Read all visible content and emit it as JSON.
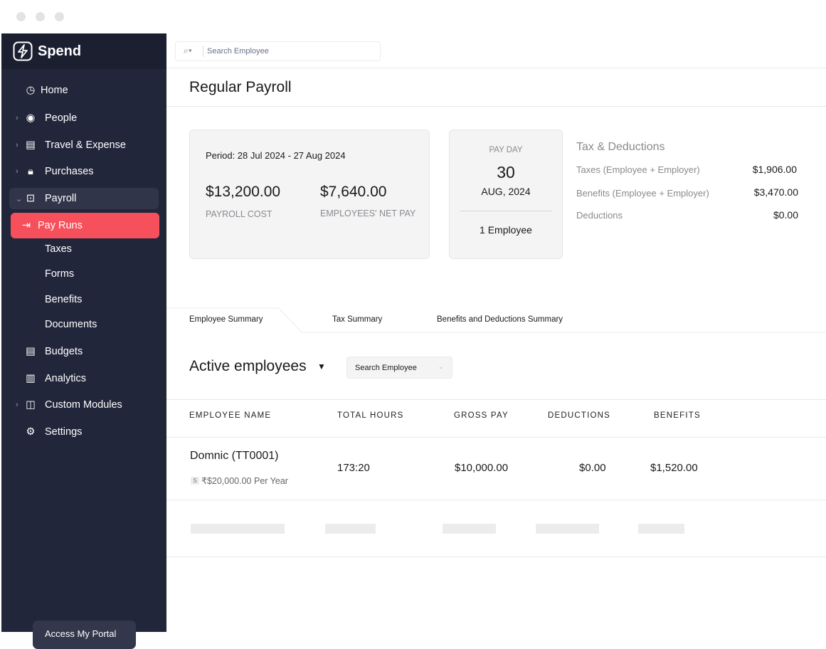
{
  "app": {
    "name": "Spend"
  },
  "sidebar": {
    "items": [
      {
        "label": "Home",
        "icon": "clock-icon"
      },
      {
        "label": "People",
        "icon": "user-circle-icon"
      },
      {
        "label": "Travel & Expense",
        "icon": "receipt-icon"
      },
      {
        "label": "Purchases",
        "icon": "bag-icon"
      },
      {
        "label": "Payroll",
        "icon": "payroll-icon"
      },
      {
        "label": "Pay Runs",
        "icon": "pay-runs-icon"
      },
      {
        "label": "Taxes"
      },
      {
        "label": "Forms"
      },
      {
        "label": "Benefits"
      },
      {
        "label": "Documents"
      },
      {
        "label": "Budgets",
        "icon": "budget-icon"
      },
      {
        "label": "Analytics",
        "icon": "chart-icon"
      },
      {
        "label": "Custom Modules",
        "icon": "layout-icon"
      },
      {
        "label": "Settings",
        "icon": "gear-icon"
      }
    ],
    "portal_button": "Access My Portal",
    "accent": "#f6505c"
  },
  "header": {
    "search_placeholder": "Search Employee",
    "title": "Regular Payroll"
  },
  "summary": {
    "period": "Period: 28 Jul 2024 - 27 Aug 2024",
    "payroll_cost": "$13,200.00",
    "payroll_cost_label": "PAYROLL COST",
    "net_pay": "$7,640.00",
    "net_pay_label": "EMPLOYEES' NET PAY"
  },
  "payday": {
    "label": "PAY DAY",
    "day": "30",
    "month_year": "AUG, 2024",
    "employees": "1 Employee"
  },
  "tax": {
    "title": "Tax & Deductions",
    "rows": [
      {
        "label": "Taxes (Employee + Employer)",
        "value": "$1,906.00"
      },
      {
        "label": "Benefits (Employee + Employer)",
        "value": "$3,470.00"
      },
      {
        "label": "Deductions",
        "value": "$0.00"
      }
    ]
  },
  "tabs": [
    "Employee Summary",
    "Tax Summary",
    "Benefits and Deductions Summary"
  ],
  "employees": {
    "title": "Active employees",
    "search_placeholder": "Search Employee",
    "columns": [
      "EMPLOYEE NAME",
      "TOTAL HOURS",
      "GROSS PAY",
      "DEDUCTIONS",
      "BENEFITS"
    ],
    "rows": [
      {
        "name": "Domnic (TT0001)",
        "badge": "S",
        "salary": "₹$20,000.00 Per Year",
        "hours": "173:20",
        "gross": "$10,000.00",
        "deductions": "$0.00",
        "benefits": "$1,520.00"
      }
    ]
  }
}
